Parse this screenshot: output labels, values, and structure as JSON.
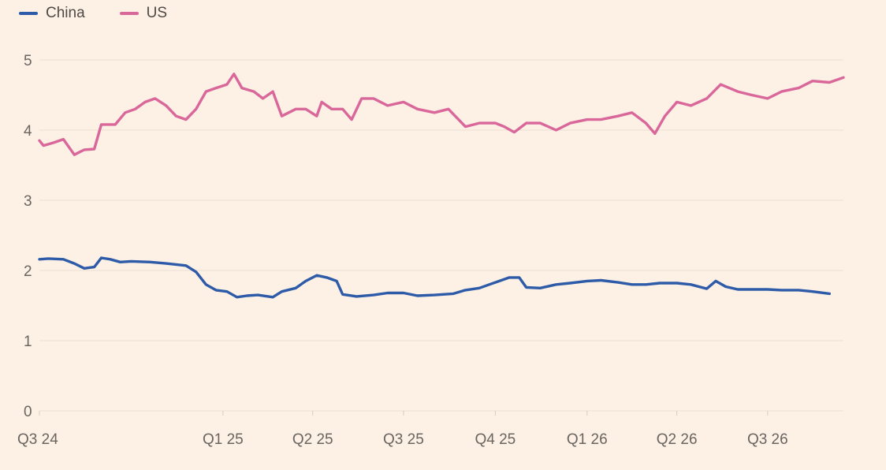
{
  "legend": [
    {
      "name": "China",
      "color": "#2d5ba8"
    },
    {
      "name": "US",
      "color": "#d9679a"
    }
  ],
  "chart_data": {
    "type": "line",
    "title": "",
    "xlabel": "",
    "ylabel": "",
    "ylim": [
      0,
      5
    ],
    "yticks": [
      0,
      1,
      2,
      3,
      4,
      5
    ],
    "xlim": [
      "2024-07-01",
      "2026-09-15"
    ],
    "xticks": [
      {
        "label": "Q3 24",
        "date": "2024-07-01"
      },
      {
        "label": "Q1 25",
        "date": "2025-01-01"
      },
      {
        "label": "Q2 25",
        "date": "2025-04-01"
      },
      {
        "label": "Q3 25",
        "date": "2025-07-01"
      },
      {
        "label": "Q4 25",
        "date": "2025-10-01"
      },
      {
        "label": "Q1 26",
        "date": "2026-01-01"
      },
      {
        "label": "Q2 26",
        "date": "2026-04-01"
      },
      {
        "label": "Q3 26",
        "date": "2026-07-01"
      }
    ],
    "grid": true,
    "legend_position": "top-left",
    "series": [
      {
        "name": "China",
        "color": "#2d5ba8",
        "points": [
          [
            "2024-07-01",
            2.16
          ],
          [
            "2024-07-10",
            2.17
          ],
          [
            "2024-07-25",
            2.16
          ],
          [
            "2024-08-05",
            2.1
          ],
          [
            "2024-08-15",
            2.03
          ],
          [
            "2024-08-25",
            2.05
          ],
          [
            "2024-09-01",
            2.18
          ],
          [
            "2024-09-10",
            2.16
          ],
          [
            "2024-09-20",
            2.12
          ],
          [
            "2024-10-01",
            2.13
          ],
          [
            "2024-10-20",
            2.12
          ],
          [
            "2024-11-05",
            2.1
          ],
          [
            "2024-11-25",
            2.07
          ],
          [
            "2024-12-05",
            1.98
          ],
          [
            "2024-12-15",
            1.8
          ],
          [
            "2024-12-25",
            1.72
          ],
          [
            "2025-01-05",
            1.7
          ],
          [
            "2025-01-15",
            1.62
          ],
          [
            "2025-01-25",
            1.64
          ],
          [
            "2025-02-05",
            1.65
          ],
          [
            "2025-02-20",
            1.62
          ],
          [
            "2025-03-01",
            1.7
          ],
          [
            "2025-03-15",
            1.75
          ],
          [
            "2025-03-25",
            1.85
          ],
          [
            "2025-04-05",
            1.93
          ],
          [
            "2025-04-15",
            1.9
          ],
          [
            "2025-04-25",
            1.85
          ],
          [
            "2025-05-01",
            1.66
          ],
          [
            "2025-05-15",
            1.63
          ],
          [
            "2025-06-01",
            1.65
          ],
          [
            "2025-06-15",
            1.68
          ],
          [
            "2025-07-01",
            1.68
          ],
          [
            "2025-07-15",
            1.64
          ],
          [
            "2025-08-01",
            1.65
          ],
          [
            "2025-08-20",
            1.67
          ],
          [
            "2025-09-01",
            1.72
          ],
          [
            "2025-09-15",
            1.75
          ],
          [
            "2025-09-25",
            1.8
          ],
          [
            "2025-10-05",
            1.85
          ],
          [
            "2025-10-15",
            1.9
          ],
          [
            "2025-10-25",
            1.9
          ],
          [
            "2025-11-01",
            1.76
          ],
          [
            "2025-11-15",
            1.75
          ],
          [
            "2025-12-01",
            1.8
          ],
          [
            "2025-12-15",
            1.82
          ],
          [
            "2026-01-01",
            1.85
          ],
          [
            "2026-01-15",
            1.86
          ],
          [
            "2026-02-01",
            1.83
          ],
          [
            "2026-02-15",
            1.8
          ],
          [
            "2026-03-01",
            1.8
          ],
          [
            "2026-03-15",
            1.82
          ],
          [
            "2026-04-01",
            1.82
          ],
          [
            "2026-04-15",
            1.8
          ],
          [
            "2026-05-01",
            1.74
          ],
          [
            "2026-05-10",
            1.85
          ],
          [
            "2026-05-20",
            1.77
          ],
          [
            "2026-06-01",
            1.73
          ],
          [
            "2026-06-15",
            1.73
          ],
          [
            "2026-07-01",
            1.73
          ],
          [
            "2026-07-15",
            1.72
          ],
          [
            "2026-08-01",
            1.72
          ],
          [
            "2026-08-15",
            1.7
          ],
          [
            "2026-09-01",
            1.67
          ]
        ]
      },
      {
        "name": "US",
        "color": "#d9679a",
        "points": [
          [
            "2024-07-01",
            3.85
          ],
          [
            "2024-07-05",
            3.78
          ],
          [
            "2024-07-15",
            3.82
          ],
          [
            "2024-07-25",
            3.87
          ],
          [
            "2024-08-05",
            3.65
          ],
          [
            "2024-08-15",
            3.72
          ],
          [
            "2024-08-25",
            3.73
          ],
          [
            "2024-09-01",
            4.08
          ],
          [
            "2024-09-15",
            4.08
          ],
          [
            "2024-09-25",
            4.25
          ],
          [
            "2024-10-05",
            4.3
          ],
          [
            "2024-10-15",
            4.4
          ],
          [
            "2024-10-25",
            4.45
          ],
          [
            "2024-11-05",
            4.35
          ],
          [
            "2024-11-15",
            4.2
          ],
          [
            "2024-11-25",
            4.15
          ],
          [
            "2024-12-05",
            4.3
          ],
          [
            "2024-12-15",
            4.55
          ],
          [
            "2024-12-25",
            4.6
          ],
          [
            "2025-01-05",
            4.65
          ],
          [
            "2025-01-12",
            4.8
          ],
          [
            "2025-01-20",
            4.6
          ],
          [
            "2025-02-01",
            4.55
          ],
          [
            "2025-02-10",
            4.45
          ],
          [
            "2025-02-20",
            4.55
          ],
          [
            "2025-03-01",
            4.2
          ],
          [
            "2025-03-15",
            4.3
          ],
          [
            "2025-03-25",
            4.3
          ],
          [
            "2025-04-05",
            4.2
          ],
          [
            "2025-04-10",
            4.4
          ],
          [
            "2025-04-20",
            4.3
          ],
          [
            "2025-05-01",
            4.3
          ],
          [
            "2025-05-10",
            4.15
          ],
          [
            "2025-05-20",
            4.45
          ],
          [
            "2025-06-01",
            4.45
          ],
          [
            "2025-06-15",
            4.35
          ],
          [
            "2025-07-01",
            4.4
          ],
          [
            "2025-07-15",
            4.3
          ],
          [
            "2025-08-01",
            4.25
          ],
          [
            "2025-08-15",
            4.3
          ],
          [
            "2025-09-01",
            4.05
          ],
          [
            "2025-09-15",
            4.1
          ],
          [
            "2025-10-01",
            4.1
          ],
          [
            "2025-10-10",
            4.05
          ],
          [
            "2025-10-20",
            3.97
          ],
          [
            "2025-11-01",
            4.1
          ],
          [
            "2025-11-15",
            4.1
          ],
          [
            "2025-12-01",
            4.0
          ],
          [
            "2025-12-15",
            4.1
          ],
          [
            "2026-01-01",
            4.15
          ],
          [
            "2026-01-15",
            4.15
          ],
          [
            "2026-02-01",
            4.2
          ],
          [
            "2026-02-15",
            4.25
          ],
          [
            "2026-03-01",
            4.1
          ],
          [
            "2026-03-10",
            3.95
          ],
          [
            "2026-03-20",
            4.2
          ],
          [
            "2026-04-01",
            4.4
          ],
          [
            "2026-04-15",
            4.35
          ],
          [
            "2026-05-01",
            4.45
          ],
          [
            "2026-05-15",
            4.65
          ],
          [
            "2026-06-01",
            4.55
          ],
          [
            "2026-06-15",
            4.5
          ],
          [
            "2026-07-01",
            4.45
          ],
          [
            "2026-07-15",
            4.55
          ],
          [
            "2026-08-01",
            4.6
          ],
          [
            "2026-08-15",
            4.7
          ],
          [
            "2026-09-01",
            4.68
          ],
          [
            "2026-09-15",
            4.75
          ]
        ]
      }
    ]
  }
}
